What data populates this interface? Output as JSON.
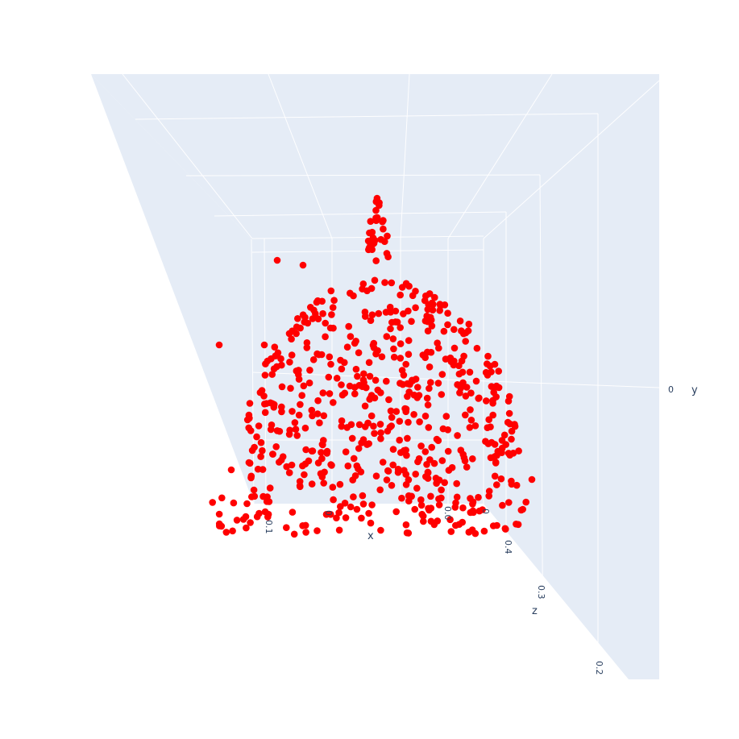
{
  "chart_data": {
    "type": "scatter3d",
    "title": "",
    "marker_color": "#ff0000",
    "pane_color": "#e5ecf6",
    "axes": {
      "x": {
        "title": "x",
        "tick_labels": [
          "0.1",
          "0",
          "0.0",
          "0"
        ]
      },
      "y": {
        "title": "y",
        "tick_labels": [
          "0"
        ]
      },
      "z": {
        "title": "z",
        "tick_labels": [
          "0.4",
          "0.3",
          "0.2"
        ]
      }
    },
    "grid": true,
    "point_count": 620,
    "note_points": "point cloud shaped like a dome/cathedral facade seen in 3D projection"
  }
}
